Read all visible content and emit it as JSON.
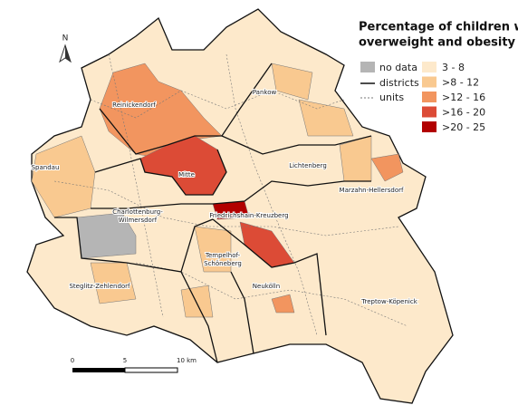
{
  "title": [
    "Percentage of children with",
    "overweight and obesity"
  ],
  "north": "N",
  "legend": {
    "no_data": {
      "label": "no data",
      "color": "#b5b5b5"
    },
    "lines": [
      "districts",
      "units"
    ],
    "classes": [
      {
        "label": "3 - 8",
        "color": "#fde9cb"
      },
      {
        "label": ">8 - 12",
        "color": "#f9c990"
      },
      {
        "label": ">12 - 16",
        "color": "#f2955f"
      },
      {
        "label": ">16 - 20",
        "color": "#dc4b36"
      },
      {
        "label": ">20 - 25",
        "color": "#b20000"
      }
    ]
  },
  "districts": [
    "Reinickendorf",
    "Pankow",
    "Spandau",
    "Mitte",
    "Lichtenberg",
    "Marzahn-Hellersdorf",
    "Charlottenburg-",
    "Wilmersdorf",
    "Friedrichshain-Kreuzberg",
    "Tempelhof-",
    "Schöneberg",
    "Steglitz-Zehlendorf",
    "Neukölln",
    "Treptow-Köpenick"
  ],
  "scale_bar": [
    "0",
    "5",
    "10 km"
  ]
}
